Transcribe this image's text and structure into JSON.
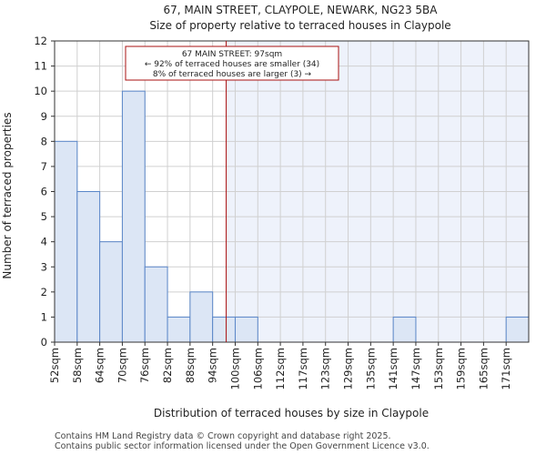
{
  "chart_data": {
    "type": "bar",
    "title": "67, MAIN STREET, CLAYPOLE, NEWARK, NG23 5BA",
    "subtitle": "Size of property relative to terraced houses in Claypole",
    "xlabel": "Distribution of terraced houses by size in Claypole",
    "ylabel": "Number of terraced properties",
    "categories": [
      "52sqm",
      "58sqm",
      "64sqm",
      "70sqm",
      "76sqm",
      "82sqm",
      "88sqm",
      "94sqm",
      "100sqm",
      "106sqm",
      "112sqm",
      "117sqm",
      "123sqm",
      "129sqm",
      "135sqm",
      "141sqm",
      "147sqm",
      "153sqm",
      "159sqm",
      "165sqm",
      "171sqm"
    ],
    "values": [
      8,
      6,
      4,
      10,
      3,
      1,
      2,
      1,
      1,
      0,
      0,
      0,
      0,
      0,
      0,
      1,
      0,
      0,
      0,
      0,
      1
    ],
    "ylim": [
      0,
      12
    ],
    "yticks": [
      0,
      1,
      2,
      3,
      4,
      5,
      6,
      7,
      8,
      9,
      10,
      11,
      12
    ],
    "grid": true,
    "marker": {
      "value_bin": 7.6,
      "lines": [
        "67 MAIN STREET: 97sqm",
        "← 92% of terraced houses are smaller (34)",
        "8% of terraced houses are larger (3) →"
      ]
    },
    "colors": {
      "bar_fill": "#dce6f5",
      "bar_stroke": "#5a86c8",
      "shade_fill": "#eef2fb",
      "marker_line": "#aa1111",
      "grid": "#d0d0d0"
    }
  },
  "footer": {
    "line1": "Contains HM Land Registry data © Crown copyright and database right 2025.",
    "line2": "Contains public sector information licensed under the Open Government Licence v3.0."
  }
}
